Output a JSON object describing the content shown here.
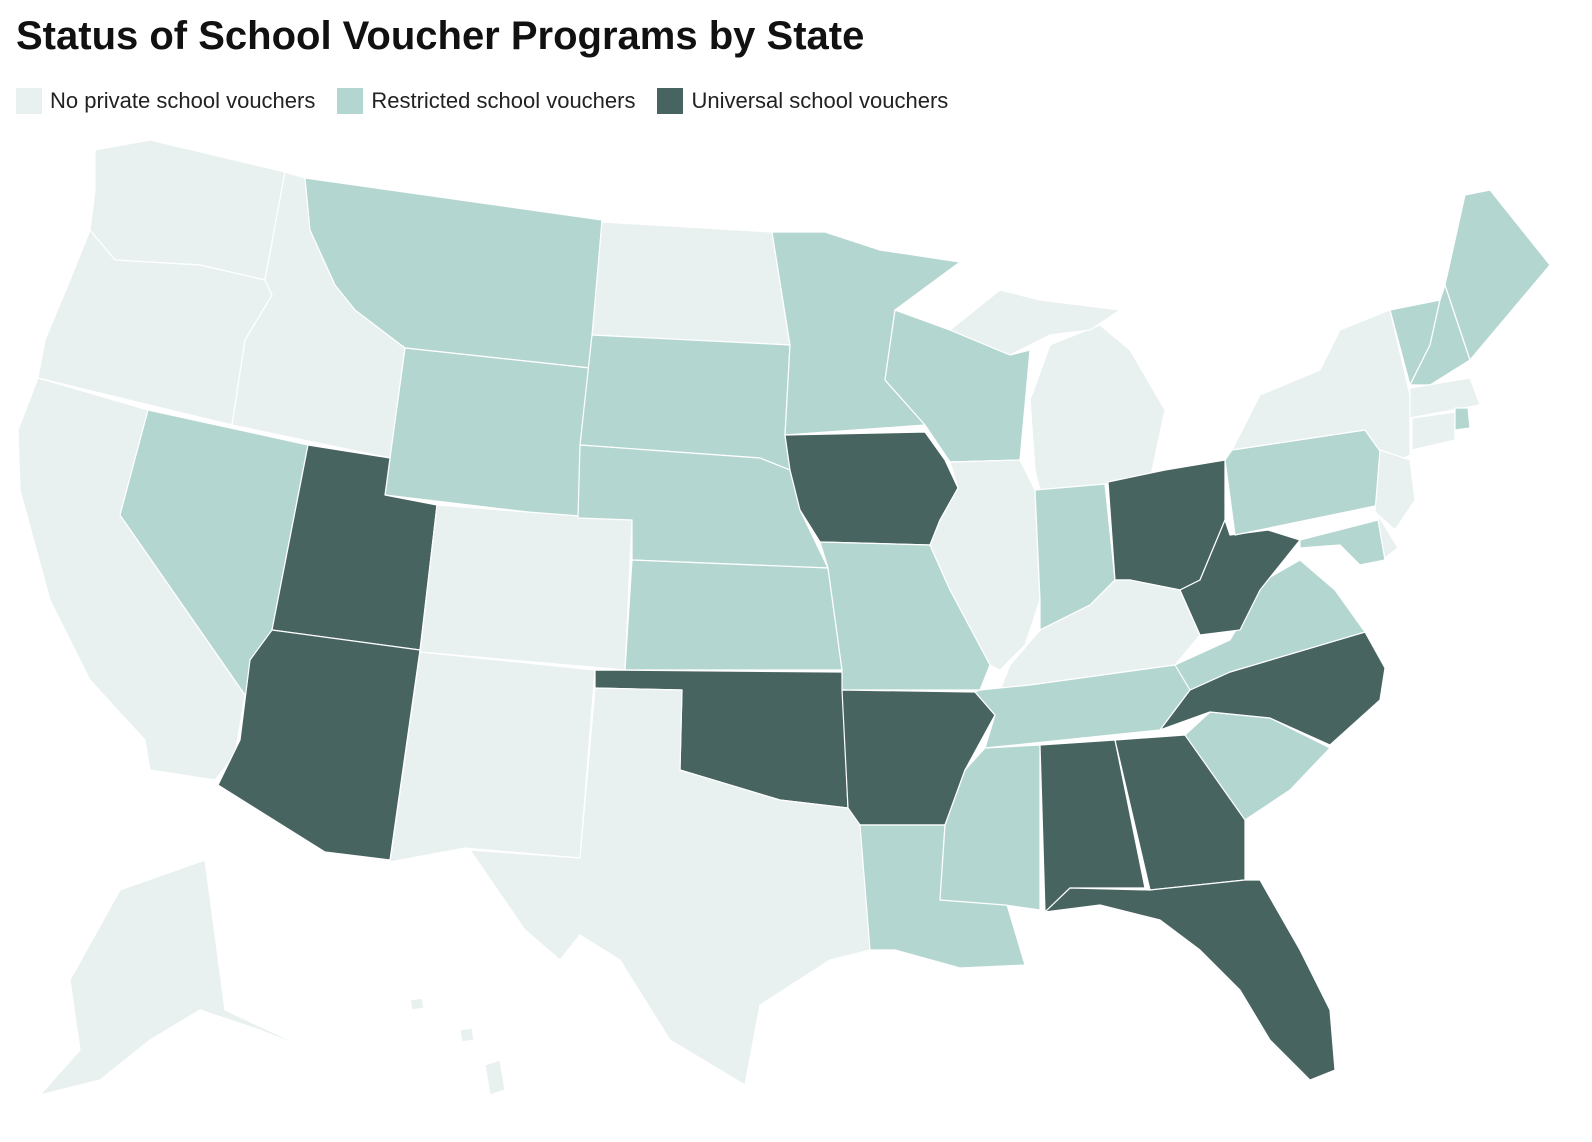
{
  "title": "Status of School Voucher Programs by State",
  "legend": [
    {
      "label": "No private school vouchers",
      "color": "#e8f1ef"
    },
    {
      "label": "Restricted school vouchers",
      "color": "#b4d6d0"
    },
    {
      "label": "Universal school vouchers",
      "color": "#486461"
    }
  ]
}
